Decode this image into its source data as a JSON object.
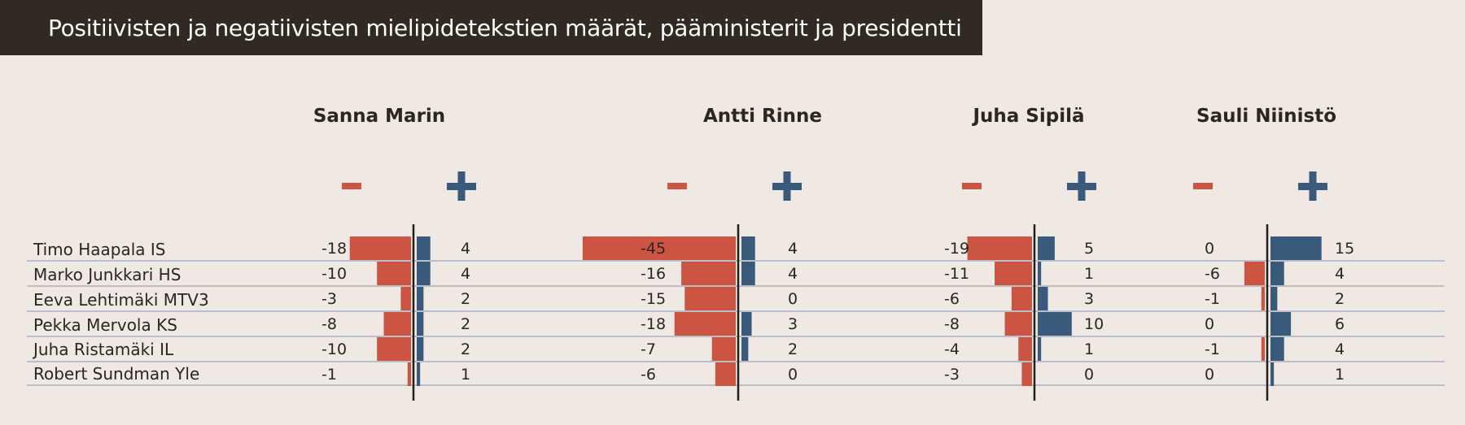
{
  "title": "Positiivisten ja negatiivisten mielipidetekstien määrät, pääministerit ja presidentti",
  "colors": {
    "negative": "#cb5442",
    "positive": "#3a5a7c",
    "text": "#2b2623",
    "title_bg": "#302a22",
    "background": "#efe8e3",
    "row_line": "#a7b0bf"
  },
  "chart_data": {
    "type": "bar",
    "categories": [
      "Timo Haapala IS",
      "Marko Junkkari HS",
      "Eeva Lehtimäki MTV3",
      "Pekka Mervola KS",
      "Juha Ristamäki IL",
      "Robert Sundman Yle"
    ],
    "series": [
      {
        "name": "Sanna Marin",
        "negative": [
          -18,
          -10,
          -3,
          -8,
          -10,
          -1
        ],
        "positive": [
          4,
          4,
          2,
          2,
          2,
          1
        ]
      },
      {
        "name": "Antti Rinne",
        "negative": [
          -45,
          -16,
          -15,
          -18,
          -7,
          -6
        ],
        "positive": [
          4,
          4,
          0,
          3,
          2,
          0
        ]
      },
      {
        "name": "Juha Sipilä",
        "negative": [
          -19,
          -11,
          -6,
          -8,
          -4,
          -3
        ],
        "positive": [
          5,
          1,
          3,
          10,
          1,
          0
        ]
      },
      {
        "name": "Sauli Niinistö",
        "negative": [
          0,
          -6,
          -1,
          0,
          -1,
          0
        ],
        "positive": [
          15,
          4,
          2,
          6,
          4,
          1
        ]
      }
    ],
    "legend": [
      "−",
      "+"
    ]
  }
}
